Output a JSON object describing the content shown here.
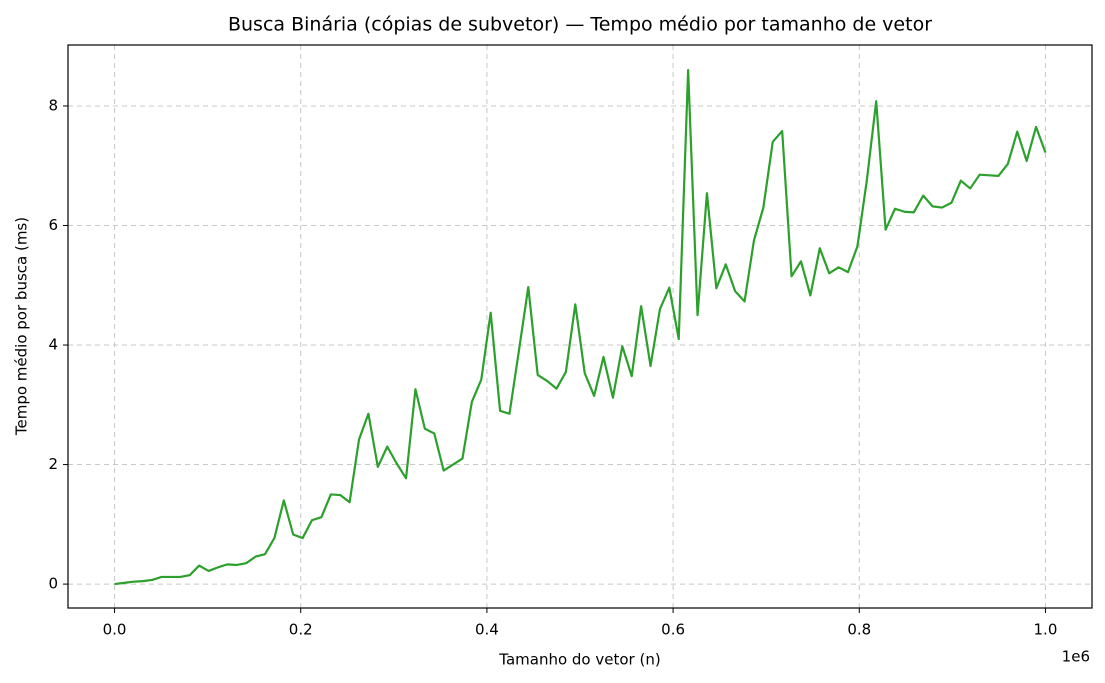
{
  "chart_data": {
    "type": "line",
    "title": "Busca Binária (cópias de subvetor) — Tempo médio por tamanho de vetor",
    "x_label": "Tamanho do vetor (n)",
    "y_label": "Tempo médio por busca (ms)",
    "x_offset_label": "1e6",
    "x": [
      0,
      10101,
      20202,
      30303,
      40404,
      50505,
      60606,
      70707,
      80808,
      90909,
      101010,
      111111,
      121212,
      131313,
      141414,
      151515,
      161616,
      171717,
      181818,
      191919,
      202020,
      212121,
      222222,
      232323,
      242424,
      252525,
      262626,
      272727,
      282828,
      292929,
      303030,
      313131,
      323232,
      333333,
      343434,
      353535,
      363636,
      373737,
      383838,
      393939,
      404040,
      414141,
      424242,
      434343,
      444444,
      454545,
      464646,
      474747,
      484848,
      494949,
      505051,
      515152,
      525253,
      535354,
      545455,
      555556,
      565657,
      575758,
      585859,
      595960,
      606061,
      616162,
      626263,
      636364,
      646465,
      656566,
      666667,
      676768,
      686869,
      696970,
      707071,
      717172,
      727273,
      737374,
      747475,
      757576,
      767677,
      777778,
      787879,
      797980,
      808081,
      818182,
      828283,
      838384,
      848485,
      858586,
      868687,
      878788,
      888889,
      898990,
      909091,
      919192,
      929293,
      939394,
      949495,
      959596,
      969697,
      979798,
      989899,
      1000000
    ],
    "series": [
      {
        "color": "#2ca02c",
        "values": [
          0,
          0.02,
          0.04,
          0.05,
          0.07,
          0.12,
          0.12,
          0.12,
          0.15,
          0.31,
          0.22,
          0.28,
          0.33,
          0.32,
          0.35,
          0.46,
          0.5,
          0.77,
          1.4,
          0.83,
          0.77,
          1.07,
          1.12,
          1.5,
          1.49,
          1.37,
          2.42,
          2.85,
          1.96,
          2.3,
          2.02,
          1.77,
          3.26,
          2.6,
          2.52,
          1.9,
          2.0,
          2.1,
          3.05,
          3.42,
          4.54,
          2.9,
          2.85,
          3.9,
          4.97,
          3.5,
          3.4,
          3.27,
          3.55,
          4.68,
          3.53,
          3.15,
          3.8,
          3.12,
          3.98,
          3.48,
          4.65,
          3.65,
          4.6,
          4.96,
          4.1,
          8.6,
          4.5,
          6.54,
          4.95,
          5.35,
          4.9,
          4.73,
          5.75,
          6.3,
          7.4,
          7.58,
          5.15,
          5.4,
          4.83,
          5.62,
          5.2,
          5.3,
          5.22,
          5.65,
          6.75,
          8.08,
          5.93,
          6.28,
          6.23,
          6.22,
          6.5,
          6.32,
          6.3,
          6.38,
          6.75,
          6.62,
          6.85,
          6.84,
          6.83,
          7.03,
          7.57,
          7.08,
          7.65,
          7.22
        ]
      }
    ],
    "xlim": [
      -50000,
      1050000
    ],
    "xticks": [
      {
        "value": 0,
        "label": "0.0"
      },
      {
        "value": 200000,
        "label": "0.2"
      },
      {
        "value": 400000,
        "label": "0.4"
      },
      {
        "value": 600000,
        "label": "0.6"
      },
      {
        "value": 800000,
        "label": "0.8"
      },
      {
        "value": 1000000,
        "label": "1.0"
      }
    ],
    "ylim": [
      -0.4,
      9.02
    ],
    "yticks": [
      0,
      2,
      4,
      6,
      8
    ],
    "grid": true
  }
}
